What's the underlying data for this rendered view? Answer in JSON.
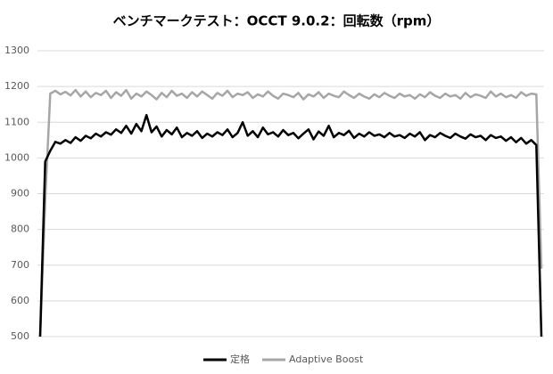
{
  "chart_data": {
    "type": "line",
    "title": "ベンチマークテスト：OCCT 9.0.2：回転数（rpm）",
    "ylim": [
      500,
      1300
    ],
    "yticks": [
      500,
      600,
      700,
      800,
      900,
      1000,
      1100,
      1200,
      1300
    ],
    "grid": true,
    "legend": "bottom",
    "series": [
      {
        "name": "定格",
        "color": "#000000",
        "values": [
          500,
          990,
          1020,
          1045,
          1040,
          1050,
          1042,
          1058,
          1048,
          1062,
          1055,
          1068,
          1060,
          1072,
          1065,
          1080,
          1070,
          1090,
          1068,
          1095,
          1075,
          1120,
          1072,
          1088,
          1060,
          1078,
          1066,
          1085,
          1058,
          1070,
          1062,
          1075,
          1056,
          1068,
          1060,
          1072,
          1064,
          1080,
          1058,
          1070,
          1100,
          1062,
          1075,
          1058,
          1085,
          1066,
          1072,
          1060,
          1078,
          1064,
          1070,
          1055,
          1068,
          1080,
          1052,
          1074,
          1062,
          1090,
          1058,
          1070,
          1064,
          1076,
          1056,
          1068,
          1060,
          1072,
          1062,
          1066,
          1058,
          1070,
          1060,
          1064,
          1056,
          1068,
          1060,
          1072,
          1050,
          1064,
          1058,
          1070,
          1062,
          1056,
          1068,
          1060,
          1054,
          1066,
          1058,
          1062,
          1050,
          1064,
          1056,
          1060,
          1048,
          1058,
          1044,
          1056,
          1040,
          1050,
          1036,
          500
        ]
      },
      {
        "name": "Adaptive Boost",
        "color": "#a6a6a6",
        "values": [
          500,
          880,
          1180,
          1188,
          1178,
          1185,
          1175,
          1190,
          1172,
          1186,
          1170,
          1182,
          1176,
          1188,
          1168,
          1184,
          1174,
          1190,
          1166,
          1180,
          1172,
          1186,
          1176,
          1164,
          1182,
          1170,
          1188,
          1174,
          1180,
          1168,
          1184,
          1172,
          1186,
          1176,
          1166,
          1182,
          1174,
          1188,
          1170,
          1180,
          1176,
          1184,
          1168,
          1178,
          1172,
          1186,
          1174,
          1166,
          1180,
          1176,
          1170,
          1182,
          1164,
          1178,
          1172,
          1184,
          1168,
          1180,
          1174,
          1170,
          1186,
          1176,
          1168,
          1180,
          1172,
          1166,
          1178,
          1170,
          1182,
          1174,
          1168,
          1180,
          1172,
          1176,
          1166,
          1178,
          1170,
          1184,
          1174,
          1168,
          1180,
          1172,
          1176,
          1166,
          1182,
          1170,
          1178,
          1174,
          1168,
          1186,
          1172,
          1180,
          1170,
          1176,
          1168,
          1184,
          1174,
          1180,
          1178,
          690
        ]
      }
    ]
  }
}
